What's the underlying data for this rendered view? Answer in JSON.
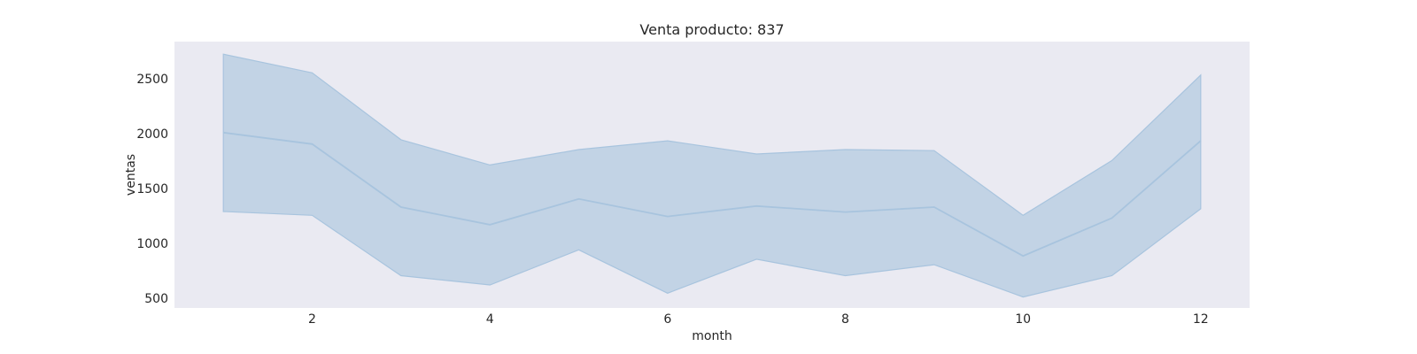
{
  "chart_data": {
    "type": "line",
    "title": "Venta producto: 837",
    "xlabel": "month",
    "ylabel": "ventas",
    "x": [
      1,
      2,
      3,
      4,
      5,
      6,
      7,
      8,
      9,
      10,
      11,
      12
    ],
    "series": [
      {
        "values": [
          2010,
          1905,
          1330,
          1170,
          1405,
          1245,
          1340,
          1285,
          1330,
          885,
          1230,
          1935
        ],
        "ci_upper": [
          2725,
          2555,
          1945,
          1715,
          1855,
          1935,
          1815,
          1855,
          1845,
          1255,
          1755,
          2535
        ],
        "ci_lower": [
          1290,
          1255,
          705,
          620,
          940,
          545,
          855,
          705,
          805,
          510,
          705,
          1315
        ]
      }
    ],
    "xticks": [
      2,
      4,
      6,
      8,
      10,
      12
    ],
    "yticks": [
      500,
      1000,
      1500,
      2000,
      2500
    ],
    "xlim": [
      0.45,
      12.55
    ],
    "ylim": [
      410,
      2840
    ],
    "grid": false,
    "colors": {
      "line": "#a8c4de",
      "band": "#c2d3e5",
      "background": "#eaeaf2"
    }
  }
}
